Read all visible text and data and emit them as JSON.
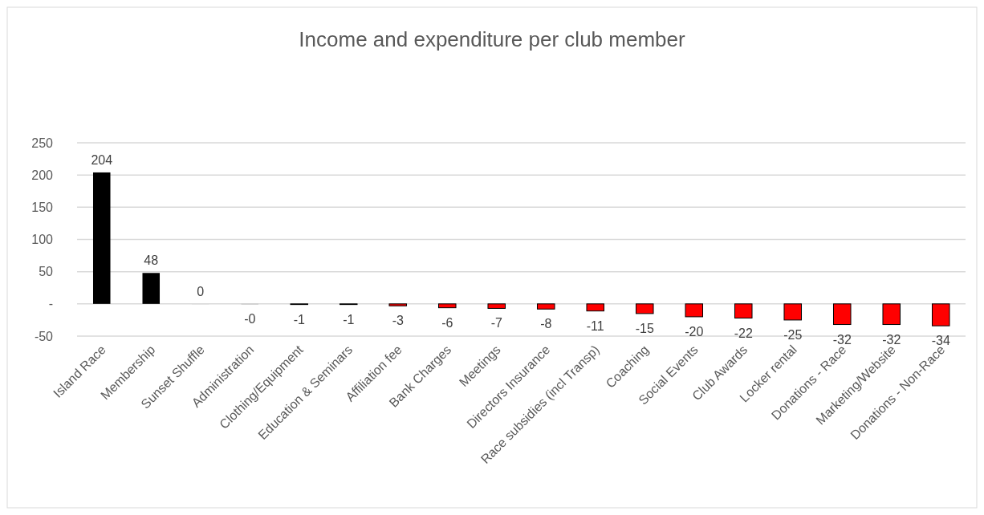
{
  "chart_data": {
    "type": "bar",
    "title": "Income and expenditure per club member",
    "categories": [
      "Island Race",
      "Membership",
      "Sunset Shuffle",
      "Administration",
      "Clothing/Equipment",
      "Education & Seminars",
      "Affiliation fee",
      "Bank Charges",
      "Meetings",
      "Directors Insurance",
      "Race subsidies (incl Transp)",
      "Coaching",
      "Social Events",
      "Club Awards",
      "Locker rental",
      "Donations - Race",
      "Marketing/Website",
      "Donations - Non-Race"
    ],
    "values": [
      204,
      48,
      0,
      0,
      -1,
      -1,
      -3,
      -6,
      -7,
      -8,
      -11,
      -15,
      -20,
      -22,
      -25,
      -32,
      -32,
      -34
    ],
    "value_labels": [
      "204",
      "48",
      "0",
      "-0",
      "-1",
      "-1",
      "-3",
      "-6",
      "-7",
      "-8",
      "-11",
      "-15",
      "-20",
      "-22",
      "-25",
      "-32",
      "-32",
      "-34"
    ],
    "colors": [
      "#000000",
      "#000000",
      "#d9d9d9",
      "#a6a6a6",
      "#000000",
      "#000000",
      "#ff0000",
      "#ff0000",
      "#ff0000",
      "#ff0000",
      "#ff0000",
      "#ff0000",
      "#ff0000",
      "#ff0000",
      "#ff0000",
      "#ff0000",
      "#ff0000",
      "#ff0000"
    ],
    "ylim": [
      -50,
      250
    ],
    "yticks": [
      -50,
      {
        "value": 0,
        "label": "-"
      },
      50,
      100,
      150,
      200,
      250
    ],
    "grid": "y"
  }
}
